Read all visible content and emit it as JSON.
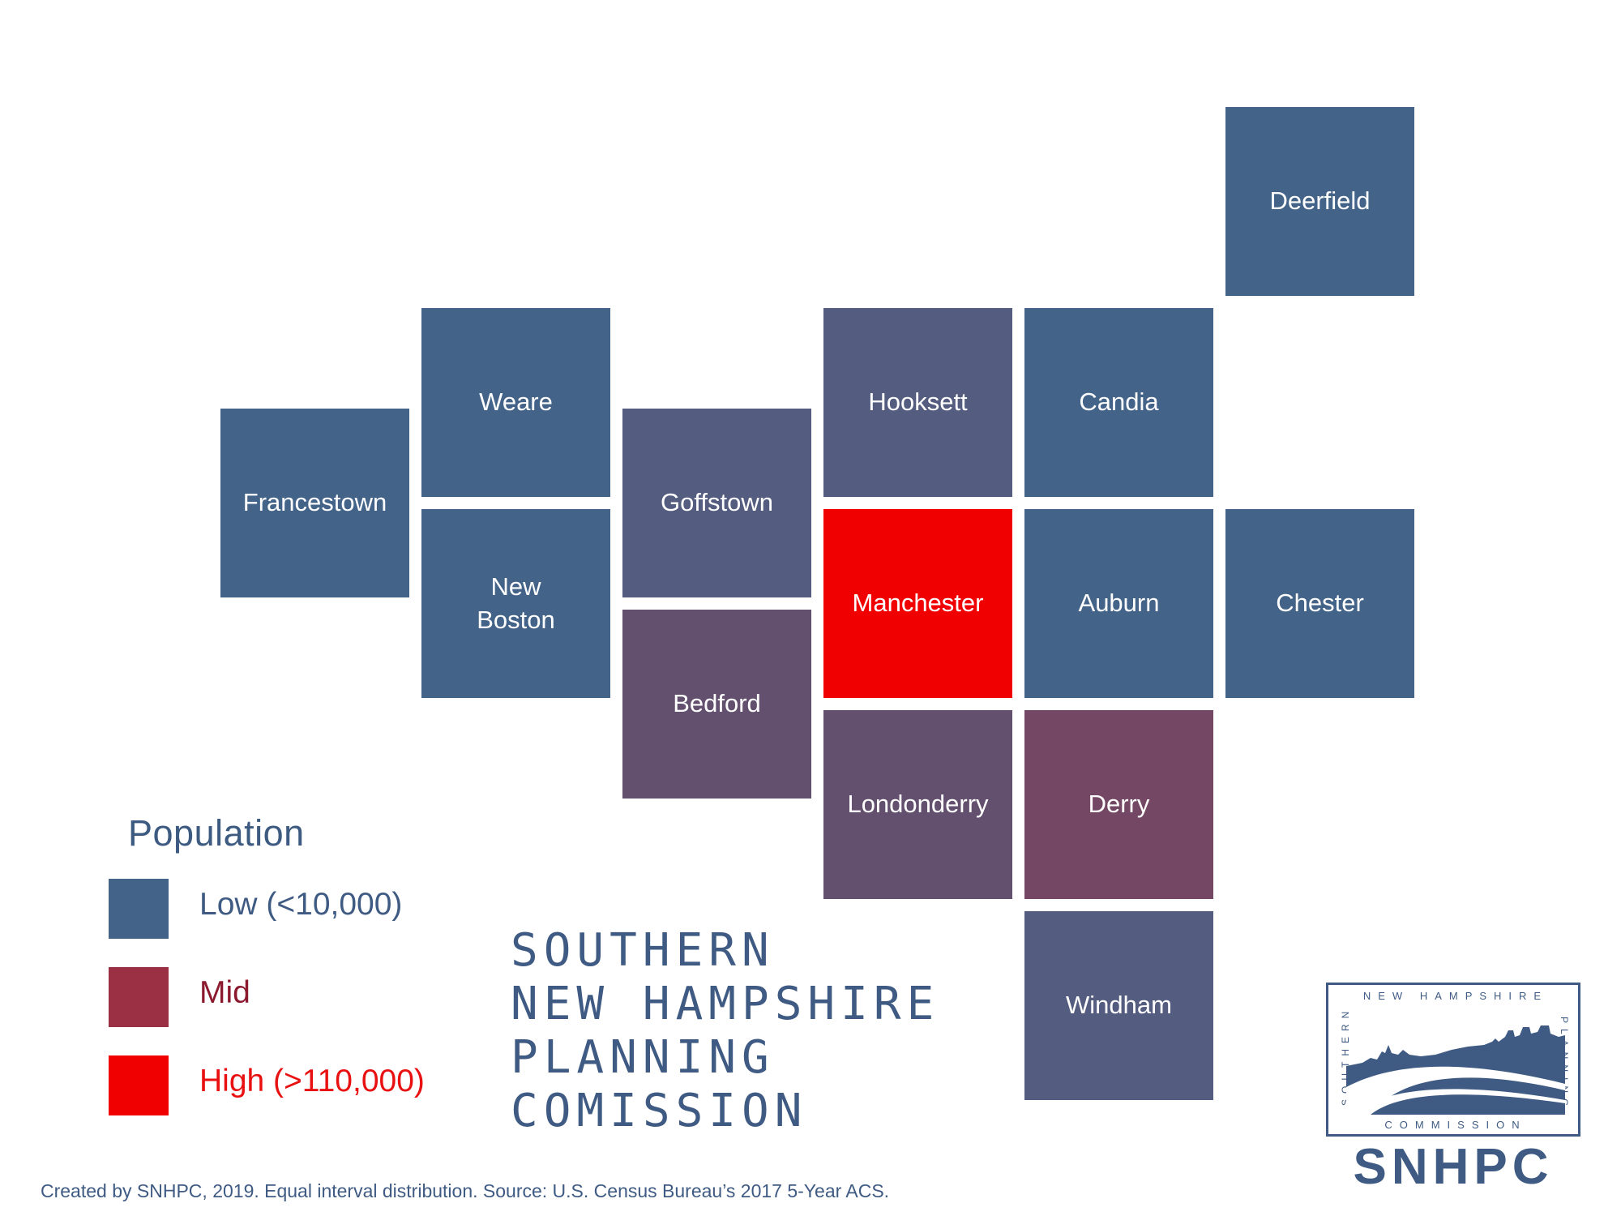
{
  "colors": {
    "low": "#436388",
    "low_mid": "#545c7f",
    "mid_low": "#63506f",
    "mid": "#744864",
    "high": "#f00000",
    "legend_mid": "#9b3045",
    "legend_mid_text": "#8b1a2e",
    "legend_high_text": "#e81010",
    "text_blue": "#3f5b83"
  },
  "towns": [
    {
      "name": "Deerfield",
      "category": "low",
      "color": "#436388"
    },
    {
      "name": "Weare",
      "category": "low",
      "color": "#436388"
    },
    {
      "name": "Hooksett",
      "category": "low",
      "color": "#545c7f"
    },
    {
      "name": "Candia",
      "category": "low",
      "color": "#436388"
    },
    {
      "name": "Francestown",
      "category": "low",
      "color": "#436388"
    },
    {
      "name": "Goffstown",
      "category": "low",
      "color": "#545c7f"
    },
    {
      "name": "New\nBoston",
      "category": "low",
      "color": "#436388"
    },
    {
      "name": "Manchester",
      "category": "high",
      "color": "#f00000"
    },
    {
      "name": "Auburn",
      "category": "low",
      "color": "#436388"
    },
    {
      "name": "Chester",
      "category": "low",
      "color": "#436388"
    },
    {
      "name": "Bedford",
      "category": "mid",
      "color": "#63506f"
    },
    {
      "name": "Londonderry",
      "category": "mid",
      "color": "#63506f"
    },
    {
      "name": "Derry",
      "category": "mid",
      "color": "#744864"
    },
    {
      "name": "Windham",
      "category": "low",
      "color": "#545c7f"
    }
  ],
  "legend": {
    "title": "Population",
    "items": [
      {
        "label": "Low (<10,000)",
        "color": "#436388",
        "text_color": "#3f5b83"
      },
      {
        "label": "Mid",
        "color": "#9b3045",
        "text_color": "#8b1a2e"
      },
      {
        "label": "High (>110,000)",
        "color": "#f00000",
        "text_color": "#e81010"
      }
    ]
  },
  "org_name_lines": [
    "SOUTHERN",
    "NEW HAMPSHIRE",
    "PLANNING",
    "COMISSION"
  ],
  "footer": "Created by SNHPC, 2019. Equal interval distribution. Source: U.S. Census Bureau’s 2017 5-Year ACS.",
  "logo": {
    "top_text": "NEW HAMPSHIRE",
    "left_text": "SOUTHERN",
    "right_text": "PLANNING",
    "bottom_text": "COMMISSION",
    "abbr": "SNHPC"
  }
}
